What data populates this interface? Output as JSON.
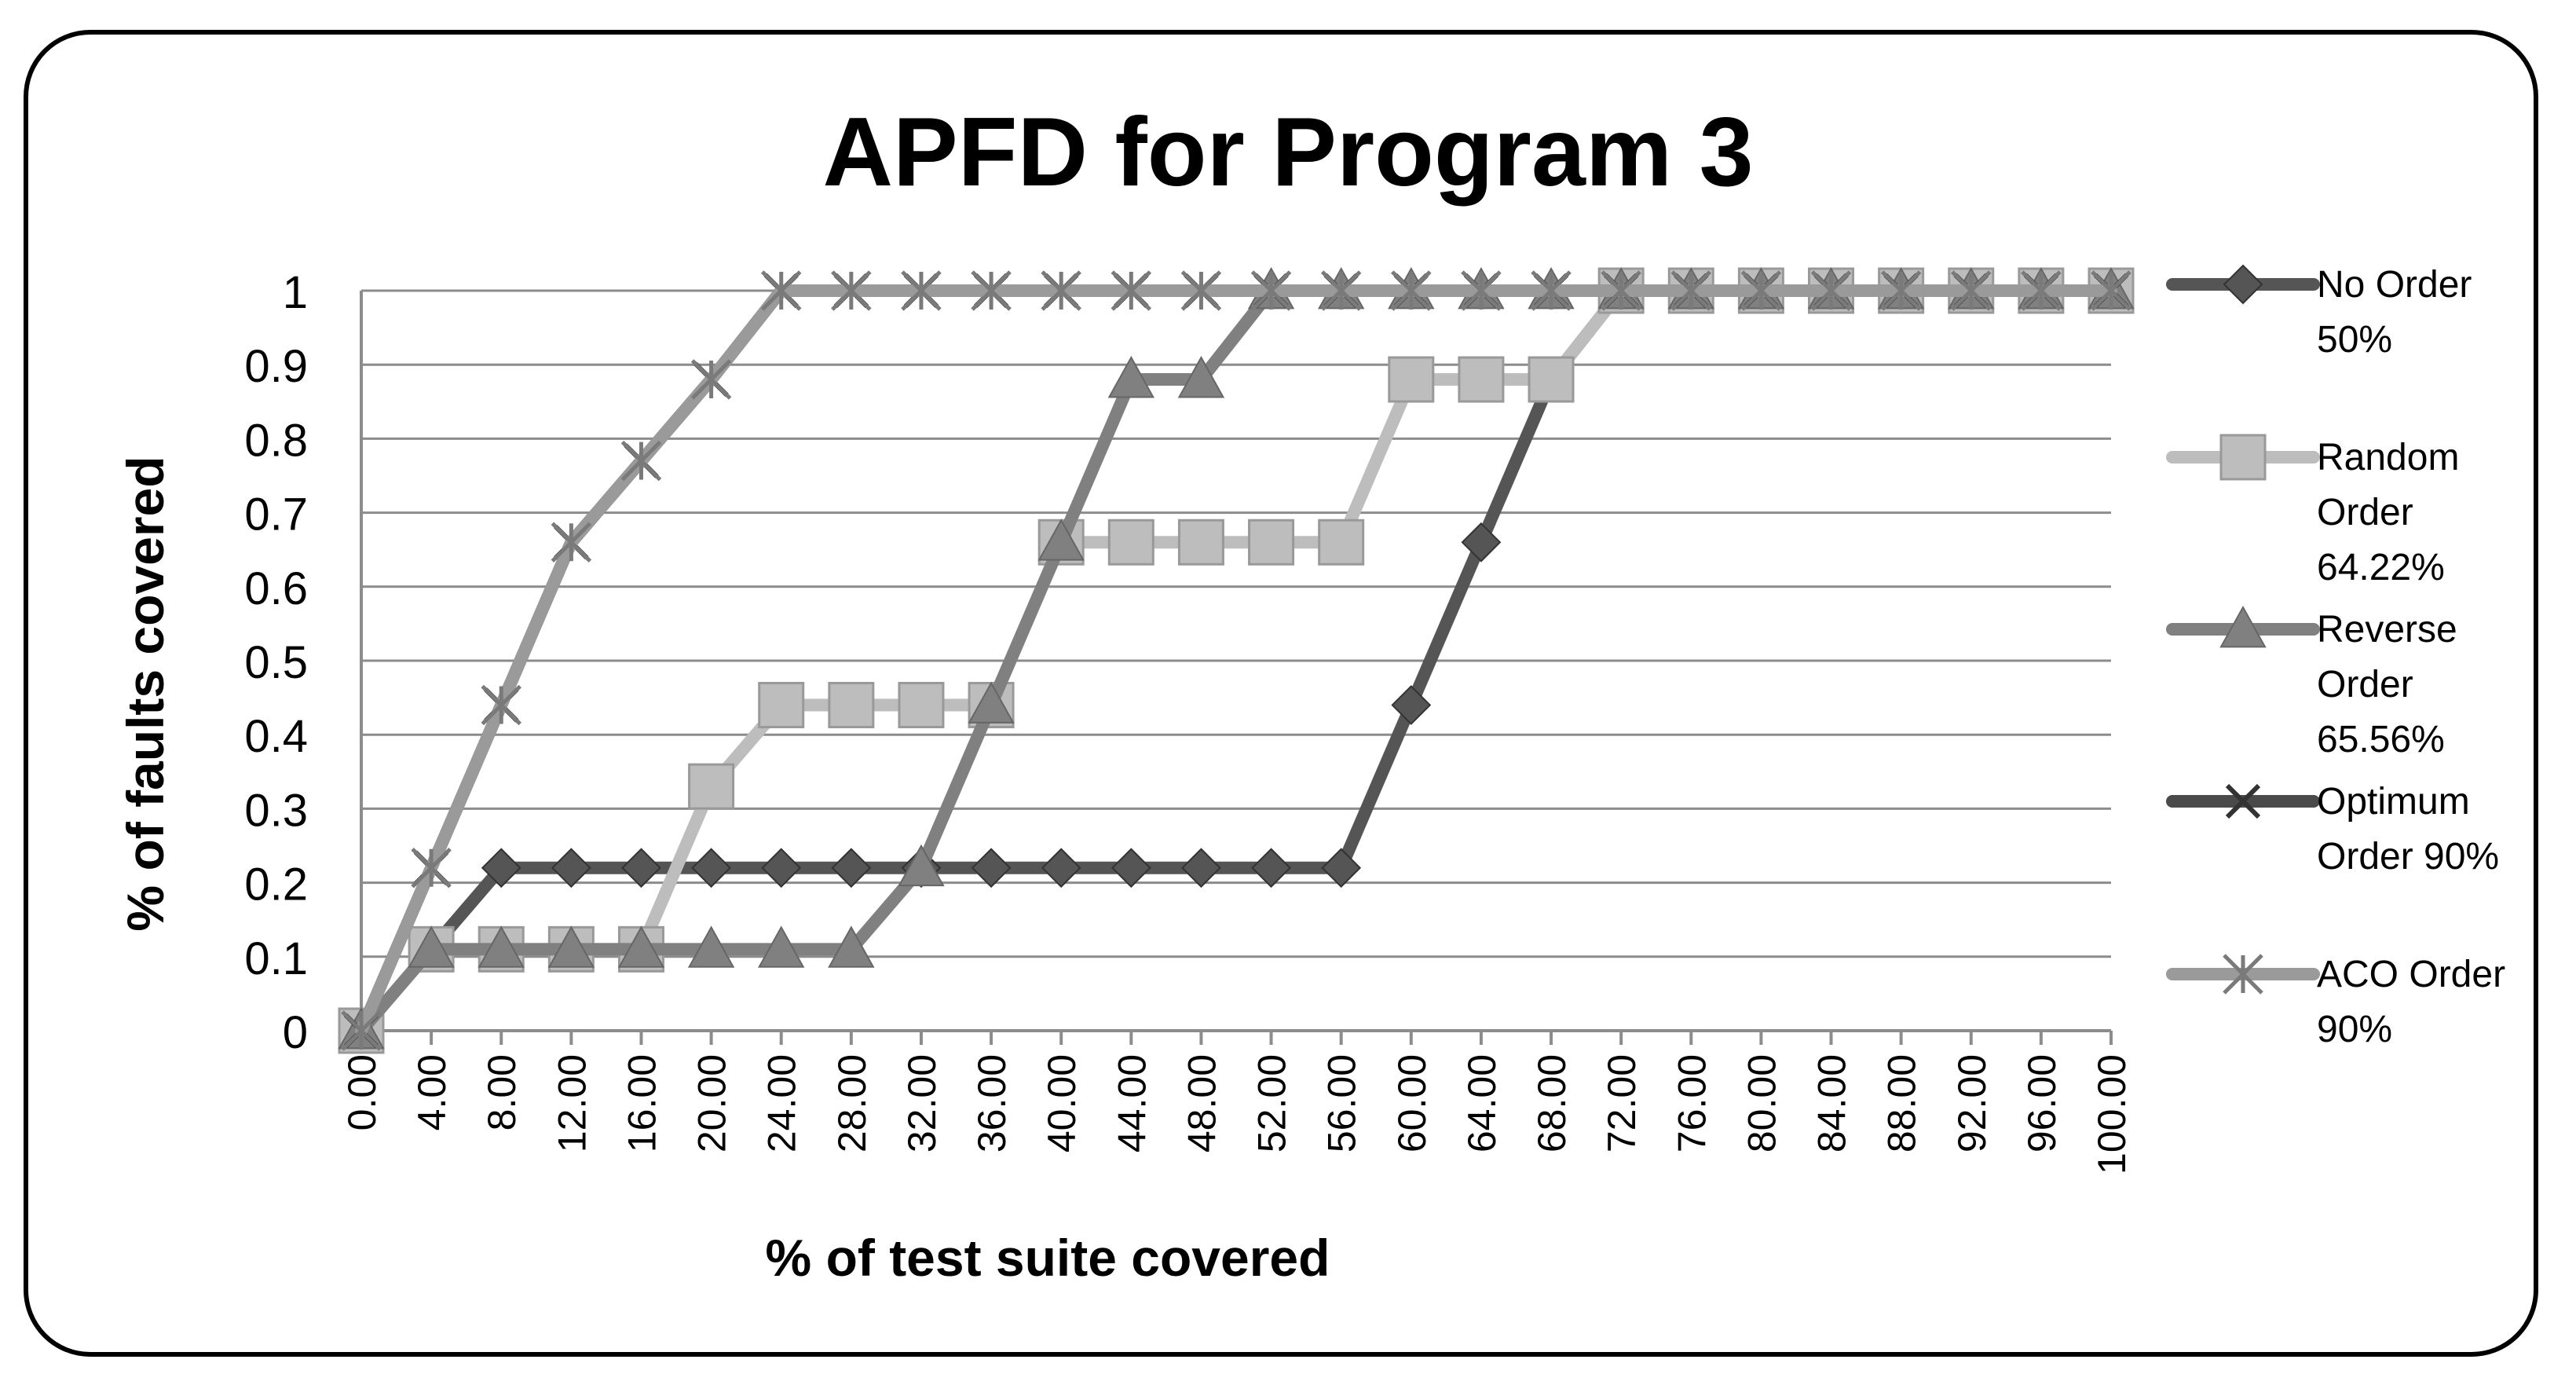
{
  "chart_data": {
    "type": "line",
    "title": "APFD for Program 3",
    "xlabel": "% of test suite covered",
    "ylabel": "% of faults covered",
    "x": [
      0,
      4,
      8,
      12,
      16,
      20,
      24,
      28,
      32,
      36,
      40,
      44,
      48,
      52,
      56,
      60,
      64,
      68,
      72,
      76,
      80,
      84,
      88,
      92,
      96,
      100
    ],
    "x_tick_labels": [
      "0.00",
      "4.00",
      "8.00",
      "12.00",
      "16.00",
      "20.00",
      "24.00",
      "28.00",
      "32.00",
      "36.00",
      "40.00",
      "44.00",
      "48.00",
      "52.00",
      "56.00",
      "60.00",
      "64.00",
      "68.00",
      "72.00",
      "76.00",
      "80.00",
      "84.00",
      "88.00",
      "92.00",
      "96.00",
      "100.00"
    ],
    "y_tick_labels": [
      "0",
      "0.1",
      "0.2",
      "0.3",
      "0.4",
      "0.5",
      "0.6",
      "0.7",
      "0.8",
      "0.9",
      "1"
    ],
    "ylim": [
      0,
      1
    ],
    "grid": "horizontal",
    "legend_position": "right",
    "series": [
      {
        "name": "No Order 50%",
        "legend_lines": [
          "No Order",
          "50%"
        ],
        "marker": "diamond",
        "color": "#555555",
        "values": [
          0,
          0.11,
          0.22,
          0.22,
          0.22,
          0.22,
          0.22,
          0.22,
          0.22,
          0.22,
          0.22,
          0.22,
          0.22,
          0.22,
          0.22,
          0.44,
          0.66,
          0.88,
          1,
          1,
          1,
          1,
          1,
          1,
          1,
          1
        ]
      },
      {
        "name": "Random Order 64.22%",
        "legend_lines": [
          "Random",
          "Order",
          "64.22%"
        ],
        "marker": "square",
        "color": "#bdbdbd",
        "values": [
          0,
          0.11,
          0.11,
          0.11,
          0.11,
          0.33,
          0.44,
          0.44,
          0.44,
          0.44,
          0.66,
          0.66,
          0.66,
          0.66,
          0.66,
          0.88,
          0.88,
          0.88,
          1,
          1,
          1,
          1,
          1,
          1,
          1,
          1
        ]
      },
      {
        "name": "Reverse Order 65.56%",
        "legend_lines": [
          "Reverse",
          "Order",
          "65.56%"
        ],
        "marker": "triangle",
        "color": "#808080",
        "values": [
          0,
          0.11,
          0.11,
          0.11,
          0.11,
          0.11,
          0.11,
          0.11,
          0.22,
          0.44,
          0.66,
          0.88,
          0.88,
          1,
          1,
          1,
          1,
          1,
          1,
          1,
          1,
          1,
          1,
          1,
          1,
          1
        ]
      },
      {
        "name": "Optimum Order 90%",
        "legend_lines": [
          "Optimum",
          "Order 90%"
        ],
        "marker": "x",
        "color": "#4a4a4a",
        "values": [
          0,
          0.22,
          0.44,
          0.66,
          0.77,
          0.88,
          1,
          1,
          1,
          1,
          1,
          1,
          1,
          1,
          1,
          1,
          1,
          1,
          1,
          1,
          1,
          1,
          1,
          1,
          1,
          1
        ]
      },
      {
        "name": "ACO Order 90%",
        "legend_lines": [
          "ACO Order",
          "90%"
        ],
        "marker": "star",
        "color": "#9a9a9a",
        "values": [
          0,
          0.22,
          0.44,
          0.66,
          0.77,
          0.88,
          1,
          1,
          1,
          1,
          1,
          1,
          1,
          1,
          1,
          1,
          1,
          1,
          1,
          1,
          1,
          1,
          1,
          1,
          1,
          1
        ]
      }
    ]
  }
}
